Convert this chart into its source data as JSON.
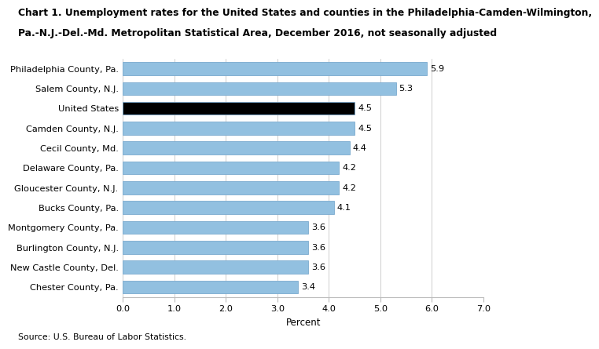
{
  "title_line1": "Chart 1. Unemployment rates for the United States and counties in the Philadelphia-Camden-Wilmington,",
  "title_line2": "Pa.-N.J.-Del.-Md. Metropolitan Statistical Area, December 2016, not seasonally adjusted",
  "categories": [
    "Chester County, Pa.",
    "New Castle County, Del.",
    "Burlington County, N.J.",
    "Montgomery County, Pa.",
    "Bucks County, Pa.",
    "Gloucester County, N.J.",
    "Delaware County, Pa.",
    "Cecil County, Md.",
    "Camden County, N.J.",
    "United States",
    "Salem County, N.J.",
    "Philadelphia County, Pa."
  ],
  "values": [
    3.4,
    3.6,
    3.6,
    3.6,
    4.1,
    4.2,
    4.2,
    4.4,
    4.5,
    4.5,
    5.3,
    5.9
  ],
  "bar_colors": [
    "#92c0e0",
    "#92c0e0",
    "#92c0e0",
    "#92c0e0",
    "#92c0e0",
    "#92c0e0",
    "#92c0e0",
    "#92c0e0",
    "#92c0e0",
    "#000000",
    "#92c0e0",
    "#92c0e0"
  ],
  "xlabel": "Percent",
  "xlim": [
    0,
    7.0
  ],
  "xticks": [
    0.0,
    1.0,
    2.0,
    3.0,
    4.0,
    5.0,
    6.0,
    7.0
  ],
  "xticklabels": [
    "0.0",
    "1.0",
    "2.0",
    "3.0",
    "4.0",
    "5.0",
    "6.0",
    "7.0"
  ],
  "source": "Source: U.S. Bureau of Labor Statistics.",
  "bar_edge_color": "#7aaace",
  "background_color": "#ffffff",
  "grid_color": "#bbbbbb",
  "title_fontsize": 8.8,
  "label_fontsize": 8.2,
  "tick_fontsize": 8.2,
  "value_fontsize": 8.2,
  "source_fontsize": 7.8,
  "xlabel_fontsize": 8.5
}
